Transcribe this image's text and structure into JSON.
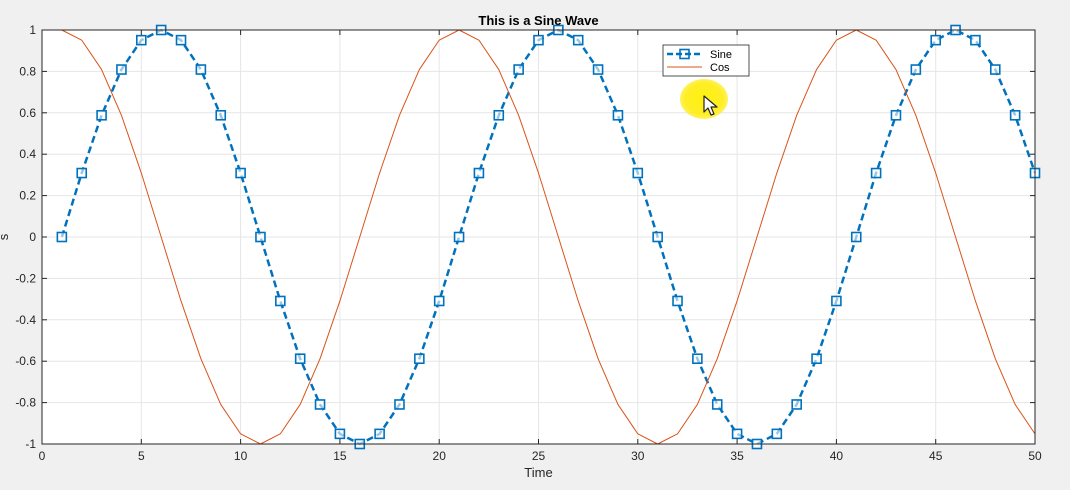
{
  "chart_data": {
    "type": "line",
    "title": "This is a Sine Wave",
    "xlabel": "Time",
    "ylabel": "s",
    "xlim": [
      0,
      50
    ],
    "ylim": [
      -1,
      1
    ],
    "grid": true,
    "legend_position": "top-right",
    "x_ticks": [
      0,
      5,
      10,
      15,
      20,
      25,
      30,
      35,
      40,
      45,
      50
    ],
    "y_ticks": [
      -1,
      -0.8,
      -0.6,
      -0.4,
      -0.2,
      0,
      0.2,
      0.4,
      0.6,
      0.8,
      1
    ],
    "x_tick_labels": [
      "0",
      "5",
      "10",
      "15",
      "20",
      "25",
      "30",
      "35",
      "40",
      "45",
      "50"
    ],
    "y_tick_labels": [
      "-1",
      "-0.8",
      "-0.6",
      "-0.4",
      "-0.2",
      "0",
      "0.2",
      "0.4",
      "0.6",
      "0.8",
      "1"
    ],
    "x": [
      1,
      2,
      3,
      4,
      5,
      6,
      7,
      8,
      9,
      10,
      11,
      12,
      13,
      14,
      15,
      16,
      17,
      18,
      19,
      20,
      21,
      22,
      23,
      24,
      25,
      26,
      27,
      28,
      29,
      30,
      31,
      32,
      33,
      34,
      35,
      36,
      37,
      38,
      39,
      40,
      41,
      42,
      43,
      44,
      45,
      46,
      47,
      48,
      49,
      50
    ],
    "series": [
      {
        "name": "Sine",
        "color": "#0072BD",
        "line_style": "dashed",
        "marker": "square",
        "values": [
          0,
          0.309,
          0.588,
          0.809,
          0.951,
          1,
          0.951,
          0.809,
          0.588,
          0.309,
          0,
          -0.309,
          -0.588,
          -0.809,
          -0.951,
          -1,
          -0.951,
          -0.809,
          -0.588,
          -0.309,
          0,
          0.309,
          0.588,
          0.809,
          0.951,
          1,
          0.951,
          0.809,
          0.588,
          0.309,
          0,
          -0.309,
          -0.588,
          -0.809,
          -0.951,
          -1,
          -0.951,
          -0.809,
          -0.588,
          -0.309,
          0,
          0.309,
          0.588,
          0.809,
          0.951,
          1,
          0.951,
          0.809,
          0.588,
          0.309
        ]
      },
      {
        "name": "Cos",
        "color": "#D95319",
        "line_style": "solid",
        "marker": "none",
        "values": [
          1,
          0.951,
          0.809,
          0.588,
          0.309,
          0,
          -0.309,
          -0.588,
          -0.809,
          -0.951,
          -1,
          -0.951,
          -0.809,
          -0.588,
          -0.309,
          0,
          0.309,
          0.588,
          0.809,
          0.951,
          1,
          0.951,
          0.809,
          0.588,
          0.309,
          0,
          -0.309,
          -0.588,
          -0.809,
          -0.951,
          -1,
          -0.951,
          -0.809,
          -0.588,
          -0.309,
          0,
          0.309,
          0.588,
          0.809,
          0.951,
          1,
          0.951,
          0.809,
          0.588,
          0.309,
          0,
          -0.309,
          -0.588,
          -0.809,
          -0.951
        ]
      }
    ]
  }
}
